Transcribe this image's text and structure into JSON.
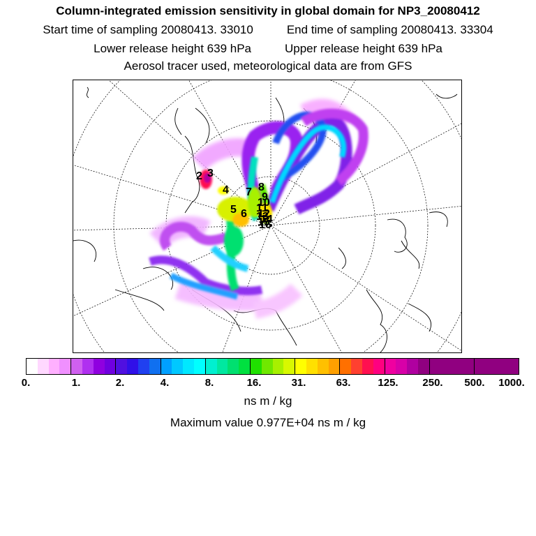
{
  "header": {
    "title": "Column-integrated emission sensitivity in global domain for NP3_20080412",
    "start_time": "Start time of sampling 20080413. 33010",
    "end_time": "End time of sampling 20080413. 33304",
    "lower_height": "Lower release height  639 hPa",
    "upper_height": "Upper release height  639 hPa",
    "tracer_note": "Aerosol tracer used, meteorological data are from GFS"
  },
  "map": {
    "projection": "polar stereographic (North Pole)",
    "plume_labels": [
      "2",
      "3",
      "4",
      "5",
      "6",
      "7",
      "8",
      "9",
      "10",
      "11",
      "12",
      "13",
      "14",
      "15",
      "16"
    ]
  },
  "legend": {
    "tick_labels": [
      "0.",
      "1.",
      "2.",
      "4.",
      "8.",
      "16.",
      "31.",
      "63.",
      "125.",
      "250.",
      "500.",
      "1000."
    ],
    "colors": [
      "#ffffff",
      "#ffd8ff",
      "#ffb0ff",
      "#f090ff",
      "#d060f0",
      "#b030f0",
      "#9000e0",
      "#7000e0",
      "#5010e0",
      "#3010e8",
      "#2040f0",
      "#1070f0",
      "#00a0ff",
      "#00c8ff",
      "#00e8ff",
      "#00ffff",
      "#00f0d0",
      "#00e8a0",
      "#00e070",
      "#00e040",
      "#20e000",
      "#70e800",
      "#a8f000",
      "#d8f800",
      "#ffff00",
      "#ffe000",
      "#ffc000",
      "#ffa000",
      "#ff7000",
      "#ff4030",
      "#ff1050",
      "#ff0080",
      "#f000a0",
      "#d800a8",
      "#b000a0",
      "#900080"
    ],
    "units": "ns m / kg",
    "max_value": "Maximum value  0.977E+04 ns m / kg"
  }
}
